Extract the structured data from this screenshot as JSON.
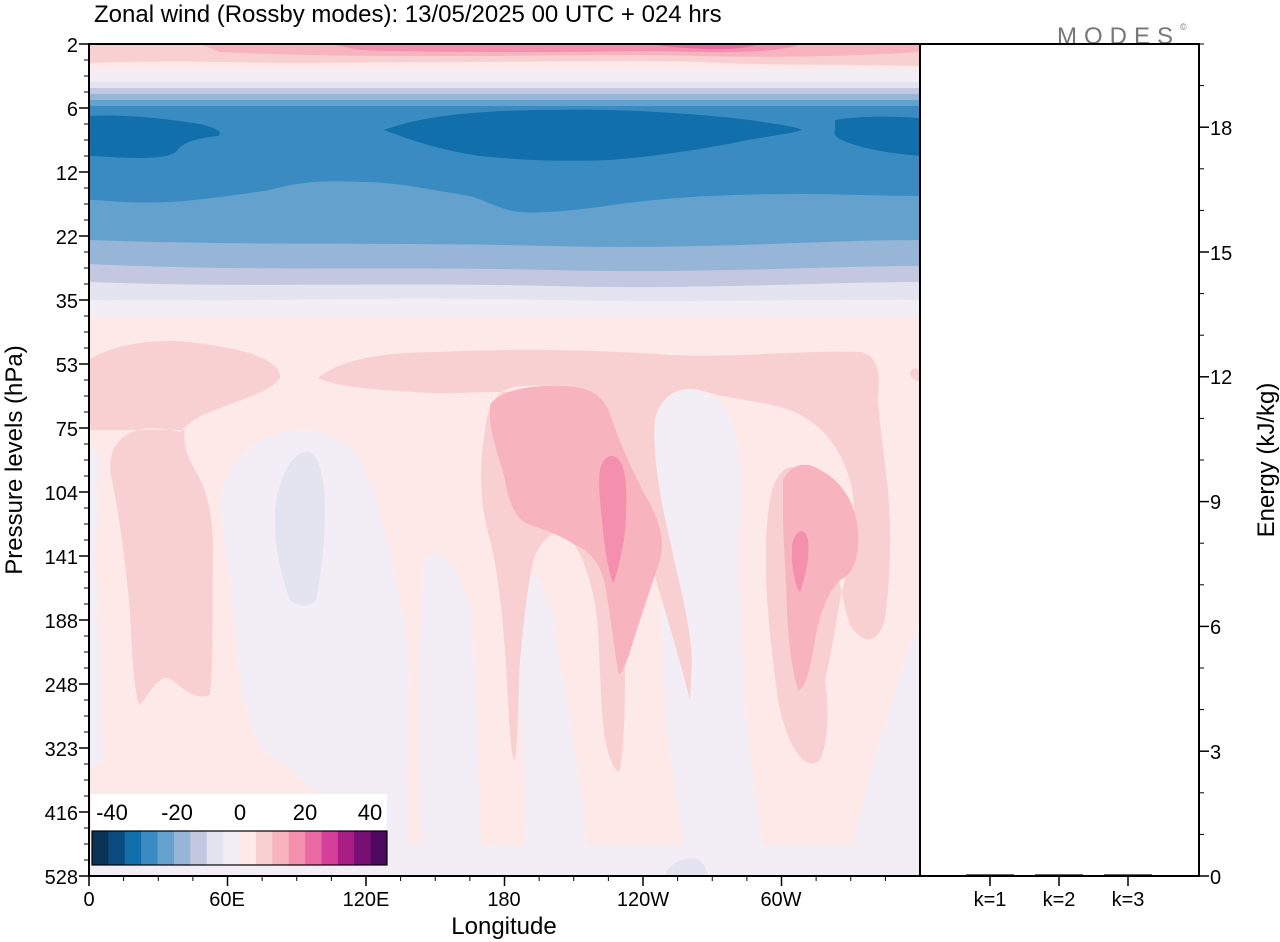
{
  "title": "Zonal wind (Rossby modes):  13/05/2025  00 UTC  + 024 hrs",
  "logo": "MODES",
  "logo_mark": "©",
  "colors": {
    "frame": "#000000",
    "background": "#ffffff"
  },
  "chart_data": [
    {
      "type": "heatmap",
      "title": "Zonal wind (Rossby modes):  13/05/2025  00 UTC  + 024 hrs",
      "xlabel": "Longitude",
      "ylabel": "Pressure levels (hPa)",
      "x_ticks": [
        "0",
        "60E",
        "120E",
        "180",
        "120W",
        "60W"
      ],
      "x_tick_degrees": [
        0,
        60,
        120,
        180,
        240,
        300
      ],
      "xlim": [
        0,
        360
      ],
      "y_levels": [
        2,
        6,
        12,
        22,
        35,
        53,
        75,
        104,
        141,
        188,
        248,
        323,
        416,
        528
      ],
      "y_scale": "pressure levels (top = 2 hPa)",
      "colorbar": {
        "tick_labels": [
          "-40",
          "-20",
          "0",
          "20",
          "40"
        ],
        "colors": [
          "#0a3356",
          "#0b4c80",
          "#1170ab",
          "#3a8bc2",
          "#64a2cd",
          "#97b5d6",
          "#c3c8e0",
          "#e3e4ef",
          "#f3eef5",
          "#fde9e8",
          "#f9d0d1",
          "#f7b4bf",
          "#f48fae",
          "#ec6aa4",
          "#d6409b",
          "#a91d86",
          "#7a0f73",
          "#4d0a5e"
        ]
      },
      "field": {
        "value_bands": [
          {
            "levels": "2",
            "value": 15,
            "color": "#f48fae"
          },
          {
            "levels": "2-6",
            "value": 5,
            "color": "#fde9e8"
          },
          {
            "levels": "6-12",
            "value": -30,
            "color": "#1170ab"
          },
          {
            "levels": "12-22",
            "value": -20,
            "color": "#64a2cd"
          },
          {
            "levels": "22-35",
            "value": -8,
            "color": "#c3c8e0"
          },
          {
            "levels": "35-528",
            "value": 2,
            "color": "#fde9e8"
          }
        ],
        "local_maxima": [
          {
            "lon": 195,
            "level": "104-141",
            "value": 15
          },
          {
            "lon": 274,
            "level": "104-141",
            "value": 15
          }
        ]
      },
      "grid": false
    },
    {
      "type": "bar",
      "ylabel": "Energy (kJ/kg)",
      "categories": [
        "k=1",
        "k=2",
        "k=3"
      ],
      "values": [
        0.02,
        0.02,
        0.01
      ],
      "ylim": [
        0,
        20
      ],
      "y_ticks": [
        "0",
        "3",
        "6",
        "9",
        "12",
        "15",
        "18"
      ],
      "grid": false
    }
  ]
}
